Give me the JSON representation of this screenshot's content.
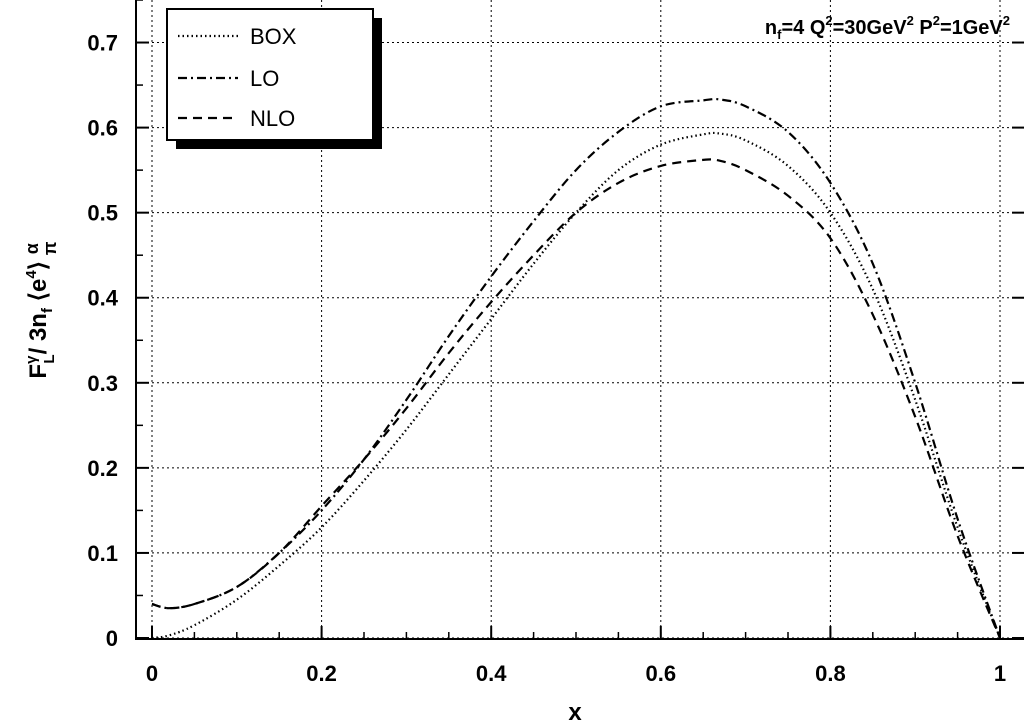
{
  "chart_data": {
    "type": "line",
    "title": "",
    "xlabel": "x",
    "ylabel": "F_L^γ / 3n_f ⟨e^4⟩ α/π",
    "xlim": [
      0,
      1
    ],
    "ylim": [
      0,
      0.75
    ],
    "x_ticks": [
      "0",
      "0.2",
      "0.4",
      "0.6",
      "0.8",
      "1"
    ],
    "y_ticks": [
      "0",
      "0.1",
      "0.2",
      "0.3",
      "0.4",
      "0.5",
      "0.6",
      "0.7"
    ],
    "grid": true,
    "legend_position": "top-left",
    "annotation": {
      "n": "n",
      "nsub": "f",
      "a": "=4 Q",
      "asup": "2",
      "b": "=30GeV",
      "bsup": "2",
      "c": " P",
      "csup": "2",
      "d": "=1GeV",
      "dsup": "2"
    },
    "series": [
      {
        "name": "BOX",
        "style": "dotted",
        "x": [
          0.0,
          0.02,
          0.05,
          0.1,
          0.15,
          0.2,
          0.25,
          0.3,
          0.35,
          0.4,
          0.45,
          0.5,
          0.55,
          0.6,
          0.65,
          0.67,
          0.7,
          0.75,
          0.8,
          0.85,
          0.9,
          0.95,
          1.0
        ],
        "y": [
          0.0,
          0.003,
          0.015,
          0.045,
          0.085,
          0.13,
          0.185,
          0.245,
          0.31,
          0.375,
          0.44,
          0.5,
          0.55,
          0.58,
          0.592,
          0.593,
          0.585,
          0.555,
          0.5,
          0.41,
          0.28,
          0.13,
          0.0
        ]
      },
      {
        "name": "LO",
        "style": "dashdot",
        "x": [
          0.0,
          0.02,
          0.05,
          0.1,
          0.15,
          0.2,
          0.25,
          0.3,
          0.35,
          0.4,
          0.45,
          0.5,
          0.55,
          0.6,
          0.65,
          0.67,
          0.7,
          0.75,
          0.8,
          0.85,
          0.9,
          0.95,
          1.0
        ],
        "y": [
          0.04,
          0.035,
          0.04,
          0.06,
          0.1,
          0.15,
          0.21,
          0.28,
          0.355,
          0.425,
          0.49,
          0.55,
          0.595,
          0.625,
          0.632,
          0.633,
          0.625,
          0.595,
          0.535,
          0.44,
          0.3,
          0.14,
          0.0
        ]
      },
      {
        "name": "NLO",
        "style": "dashed",
        "x": [
          0.0,
          0.02,
          0.05,
          0.1,
          0.15,
          0.2,
          0.25,
          0.3,
          0.35,
          0.4,
          0.45,
          0.5,
          0.55,
          0.6,
          0.65,
          0.67,
          0.7,
          0.75,
          0.8,
          0.85,
          0.9,
          0.95,
          1.0
        ],
        "y": [
          0.04,
          0.035,
          0.04,
          0.06,
          0.1,
          0.155,
          0.21,
          0.27,
          0.335,
          0.395,
          0.45,
          0.5,
          0.535,
          0.555,
          0.562,
          0.561,
          0.55,
          0.52,
          0.47,
          0.38,
          0.26,
          0.12,
          0.0
        ]
      }
    ]
  }
}
